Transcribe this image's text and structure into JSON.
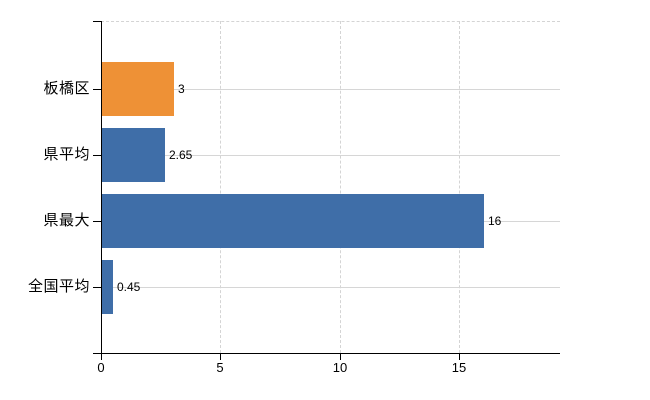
{
  "chart_data": {
    "type": "bar",
    "orientation": "horizontal",
    "categories": [
      "板橋区",
      "県平均",
      "県最大",
      "全国平均"
    ],
    "values": [
      3,
      2.65,
      16,
      0.45
    ],
    "value_labels": [
      "3",
      "2.65",
      "16",
      "0.45"
    ],
    "bar_colors": [
      "#ee9136",
      "#3f6ea8",
      "#3f6ea8",
      "#3f6ea8"
    ],
    "x_ticks": [
      {
        "value": 0,
        "label": "0"
      },
      {
        "value": 5,
        "label": "5"
      },
      {
        "value": 10,
        "label": "10"
      },
      {
        "value": 15,
        "label": "15"
      }
    ],
    "xlim": [
      0,
      19.23
    ],
    "grid": {
      "vertical_lines": "dashed",
      "category_center_lines": "solid",
      "top_boundary": "dashed"
    }
  },
  "colors": {
    "background": "#ffffff",
    "axis": "#000000",
    "grid": "#d6d6d6",
    "text": "#000000",
    "highlight_bar": "#ee9136",
    "default_bar": "#3f6ea8"
  }
}
